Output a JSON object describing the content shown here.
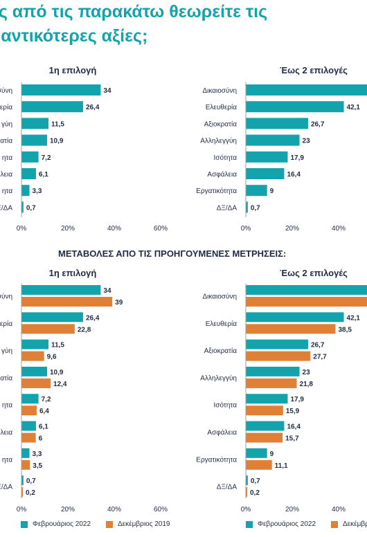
{
  "page": {
    "title_line1": "ες από τις παρακάτω θεωρείτε τις",
    "title_line2": "μαντικότερες αξίες;",
    "subheading": "ΜΕΤΑΒΟΛΕΣ ΑΠΟ ΤΙΣ ΠΡΟΗΓΟΥΜΕΝΕΣ ΜΕΤΡΗΣΕΙΣ:"
  },
  "colors": {
    "teal": "#12a3ad",
    "orange": "#e07f36",
    "axis": "#9aa0a6",
    "text": "#1f2a44"
  },
  "legend": {
    "left": [
      {
        "label": "Φεβρουάριος 2022",
        "color": "#12a3ad"
      },
      {
        "label": "Δεκέμβριος 2019",
        "color": "#e07f36"
      }
    ],
    "right": [
      {
        "label": "Φεβρουάριος 2022",
        "color": "#12a3ad"
      },
      {
        "label": "Δεκέμβριος",
        "color": "#e07f36"
      }
    ]
  },
  "chart_data": [
    {
      "type": "bar",
      "orientation": "horizontal",
      "title": "1η επιλογή",
      "categories": [
        "σύνη",
        "ερία",
        "γύη",
        "ατία",
        "ητα",
        "λεια",
        "ητα",
        "Ξ/ΔΑ"
      ],
      "series": [
        {
          "values": [
            34,
            26.4,
            11.5,
            10.9,
            7.2,
            6.1,
            3.3,
            0.7
          ]
        }
      ],
      "xlim": [
        0,
        60
      ],
      "xticks": [
        "0%",
        "20%",
        "40%",
        "60%"
      ]
    },
    {
      "type": "bar",
      "orientation": "horizontal",
      "title": "Έως 2 επιλογές",
      "categories": [
        "Δικαιοσύνη",
        "Ελευθερία",
        "Αξιοκρατία",
        "Αλληλεγγύη",
        "Ισότητα",
        "Ασφάλεια",
        "Εργατικότητα",
        "ΔΞ/ΔΑ"
      ],
      "series": [
        {
          "values": [
            null,
            42.1,
            26.7,
            23,
            17.9,
            16.4,
            9,
            0.7
          ]
        }
      ],
      "xlim": [
        0,
        60
      ],
      "xticks": [
        "0%",
        "20%",
        "40%"
      ]
    },
    {
      "type": "bar",
      "orientation": "horizontal",
      "title": "1η επιλογή",
      "categories": [
        "σύνη",
        "ερία",
        "γύη",
        "ατία",
        "ητα",
        "λεια",
        "ητα",
        "Ξ/ΔΑ"
      ],
      "series": [
        {
          "name": "Φεβρουάριος 2022",
          "values": [
            34,
            26.4,
            11.5,
            10.9,
            7.2,
            6.1,
            3.3,
            0.7
          ]
        },
        {
          "name": "Δεκέμβριος 2019",
          "values": [
            39,
            22.8,
            9.6,
            12.4,
            6.4,
            6,
            3.5,
            0.2
          ]
        }
      ],
      "xlim": [
        0,
        60
      ],
      "xticks": [
        "0%",
        "20%",
        "40%",
        "60%"
      ]
    },
    {
      "type": "bar",
      "orientation": "horizontal",
      "title": "Έως 2 επιλογές",
      "categories": [
        "Δικαιοσύνη",
        "Ελευθερία",
        "Αξιοκρατία",
        "Αλληλεγγύη",
        "Ισότητα",
        "Ασφάλεια",
        "Εργατικότητα",
        "ΔΞ/ΔΑ"
      ],
      "series": [
        {
          "name": "Φεβρουάριος 2022",
          "values": [
            null,
            42.1,
            26.7,
            23,
            17.9,
            16.4,
            9,
            0.7
          ]
        },
        {
          "name": "Δεκέμβριος",
          "values": [
            null,
            38.5,
            27.7,
            21.8,
            15.9,
            15.7,
            11.1,
            0.2
          ]
        }
      ],
      "xlim": [
        0,
        60
      ],
      "xticks": [
        "0%",
        "20%",
        "40%"
      ]
    }
  ]
}
